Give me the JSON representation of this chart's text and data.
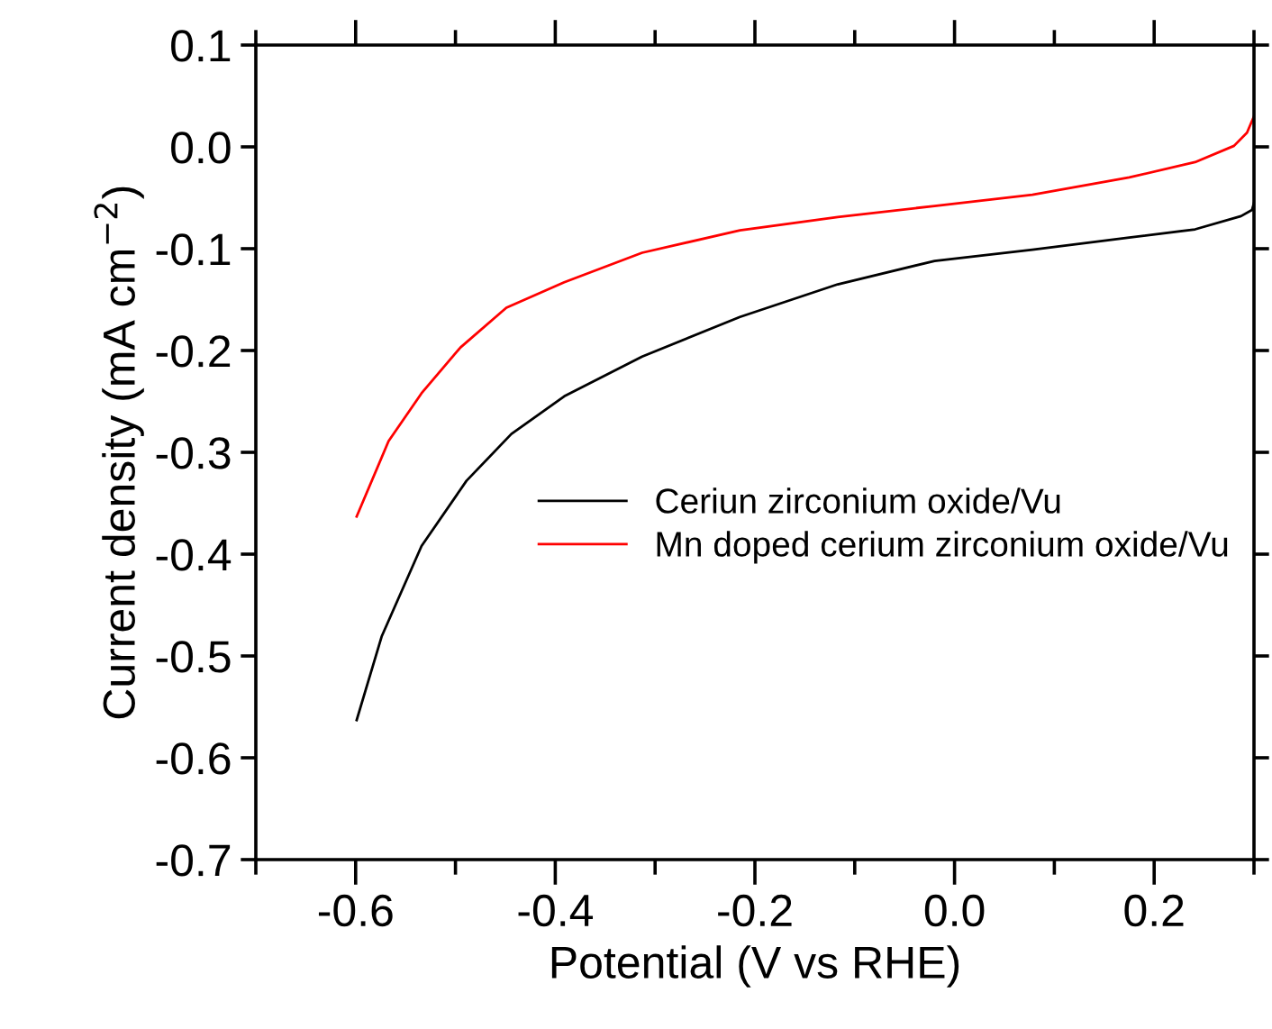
{
  "chart_data": {
    "type": "line",
    "xlabel": "Potential (V vs RHE)",
    "ylabel": "Current density (mA cm$^{−2}$)",
    "xlim": [
      -0.7,
      0.3
    ],
    "xticks": [
      -0.6,
      -0.4,
      -0.2,
      {
        "value": 0.0,
        "label": "0.0"
      },
      0.2
    ],
    "ylim": [
      -0.7,
      0.1
    ],
    "yticks": [
      -0.7,
      -0.6,
      -0.5,
      -0.4,
      -0.3,
      -0.2,
      -0.1,
      {
        "value": 0.0,
        "label": "0.0"
      },
      0.1
    ],
    "grid": false,
    "legend": "right",
    "marker": "none",
    "line_style": "solid",
    "series": [
      {
        "name": "Ceriun zirconium oxide/Vu",
        "color": "#000000",
        "x": [
          -0.599,
          -0.574,
          -0.534,
          -0.489,
          -0.444,
          -0.391,
          -0.313,
          -0.215,
          -0.117,
          -0.02,
          0.078,
          0.175,
          0.241,
          0.287,
          0.298,
          0.3
        ],
        "values": [
          -0.563,
          -0.481,
          -0.392,
          -0.328,
          -0.282,
          -0.245,
          -0.206,
          -0.167,
          -0.135,
          -0.112,
          -0.101,
          -0.089,
          -0.081,
          -0.068,
          -0.062,
          -0.055
        ]
      },
      {
        "name": "Mn doped cerium zirconium oxide/Vu",
        "color": "#ff0000",
        "x": [
          -0.599,
          -0.567,
          -0.534,
          -0.495,
          -0.449,
          -0.391,
          -0.313,
          -0.215,
          -0.117,
          -0.02,
          0.078,
          0.175,
          0.241,
          0.28,
          0.293,
          0.3
        ],
        "values": [
          -0.363,
          -0.289,
          -0.242,
          -0.197,
          -0.158,
          -0.133,
          -0.104,
          -0.082,
          -0.069,
          -0.058,
          -0.047,
          -0.03,
          -0.015,
          0.001,
          0.014,
          0.03
        ]
      }
    ]
  }
}
